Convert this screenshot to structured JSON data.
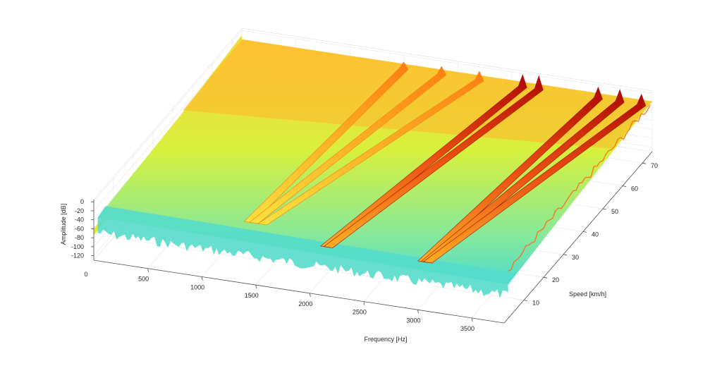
{
  "chart_data": {
    "type": "surface-3d",
    "xlabel": "Frequency [Hz]",
    "ylabel": "Speed [km/h]",
    "zlabel": "Amplitude [dB]",
    "xlim": [
      0,
      3800
    ],
    "ylim": [
      0,
      75
    ],
    "zlim": [
      -130,
      5
    ],
    "x_ticks": [
      500,
      1000,
      1500,
      2000,
      2500,
      3000,
      3500
    ],
    "y_ticks": [
      10,
      20,
      30,
      40,
      50,
      60,
      70
    ],
    "z_ticks": [
      0,
      -20,
      -40,
      -60,
      -80,
      -100,
      -120
    ],
    "origin_label": "0",
    "grid": true,
    "colormap": "jet (cyan → yellow → orange → dark red)",
    "background_level_db": [
      -60,
      -20
    ],
    "ridges": [
      {
        "f_start_hz": 1250,
        "f_end_hz": 1500,
        "speed_start_kmh": 10,
        "peak_db": -15
      },
      {
        "f_start_hz": 1300,
        "f_end_hz": 1850,
        "speed_start_kmh": 10,
        "peak_db": -12
      },
      {
        "f_start_hz": 1380,
        "f_end_hz": 2200,
        "speed_start_kmh": 10,
        "peak_db": -10
      },
      {
        "f_start_hz": 2050,
        "f_end_hz": 2600,
        "speed_start_kmh": 5,
        "peak_db": -3
      },
      {
        "f_start_hz": 2080,
        "f_end_hz": 2750,
        "speed_start_kmh": 5,
        "peak_db": 0
      },
      {
        "f_start_hz": 2950,
        "f_end_hz": 3300,
        "speed_start_kmh": 5,
        "peak_db": -5
      },
      {
        "f_start_hz": 2980,
        "f_end_hz": 3500,
        "speed_start_kmh": 5,
        "peak_db": -3
      },
      {
        "f_start_hz": 3000,
        "f_end_hz": 3700,
        "speed_start_kmh": 5,
        "peak_db": -6
      }
    ]
  }
}
